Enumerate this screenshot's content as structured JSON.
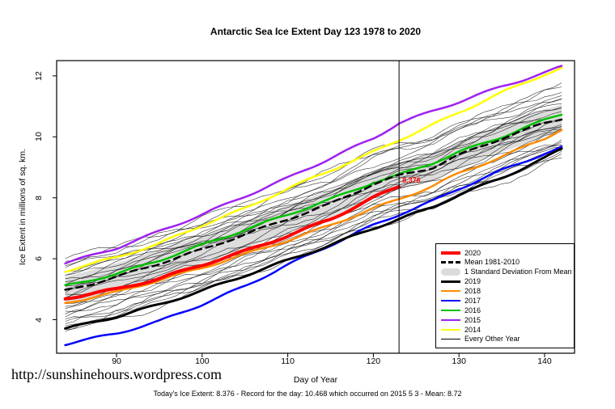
{
  "footer": {
    "url_text": "http://sunshinehours.wordpress.com",
    "caption": "Today's Ice Extent: 8.376  - Record for the day: 10.468 which occurred on 2015 5 3  - Mean: 8.72"
  },
  "chart_data": {
    "type": "line",
    "title": "Antarctic Sea Ice Extent Day 123 1978 to 2020",
    "xlabel": "Day of Year",
    "ylabel": "Ice Extent in millions of sq. km.",
    "xlim": [
      83,
      143.5
    ],
    "ylim": [
      2.9,
      12.5
    ],
    "xticks": [
      90,
      100,
      110,
      120,
      130,
      140
    ],
    "yticks": [
      4,
      6,
      8,
      10,
      12
    ],
    "grid": false,
    "vline_x": 123,
    "annotation": {
      "x": 123,
      "y": 8.376,
      "text": "8.376",
      "color": "#FF0000"
    },
    "std_band": {
      "label": "1 Standard Deviation From Mean",
      "half_width": 0.45,
      "color": "#DCDCDC"
    },
    "every_other_year": {
      "label": "Every Other Year",
      "count": 28,
      "offset_range": [
        -1.35,
        1.0
      ],
      "color": "#000000"
    },
    "series": [
      {
        "name": "2014",
        "color": "#FFFF00",
        "width": 2.5,
        "dash": false,
        "x": [
          84,
          90,
          95,
          100,
          105,
          110,
          115,
          120,
          123,
          127,
          130,
          135,
          140,
          142
        ],
        "y": [
          5.6,
          6.05,
          6.5,
          7.1,
          7.65,
          8.3,
          8.9,
          9.5,
          9.9,
          10.4,
          10.8,
          11.45,
          12.05,
          12.25
        ]
      },
      {
        "name": "2015",
        "color": "#A020F0",
        "width": 2.5,
        "dash": false,
        "x": [
          84,
          90,
          95,
          100,
          105,
          110,
          115,
          120,
          123,
          127,
          130,
          135,
          140,
          142
        ],
        "y": [
          5.85,
          6.35,
          6.9,
          7.45,
          8.05,
          8.65,
          9.3,
          9.95,
          10.45,
          10.85,
          11.15,
          11.65,
          12.1,
          12.3
        ]
      },
      {
        "name": "2016",
        "color": "#00C000",
        "width": 2.5,
        "dash": false,
        "x": [
          84,
          90,
          95,
          100,
          105,
          110,
          115,
          120,
          123,
          127,
          130,
          135,
          140,
          142
        ],
        "y": [
          5.1,
          5.5,
          5.95,
          6.45,
          6.95,
          7.45,
          7.95,
          8.5,
          8.75,
          9.15,
          9.5,
          10.0,
          10.55,
          10.75
        ]
      },
      {
        "name": "2018",
        "color": "#FF8C00",
        "width": 2.5,
        "dash": false,
        "x": [
          84,
          90,
          95,
          100,
          105,
          110,
          115,
          120,
          123,
          127,
          130,
          135,
          140,
          142
        ],
        "y": [
          4.55,
          4.9,
          5.3,
          5.7,
          6.15,
          6.6,
          7.1,
          7.65,
          7.95,
          8.4,
          8.8,
          9.35,
          9.95,
          10.25
        ]
      },
      {
        "name": "2017",
        "color": "#0000FF",
        "width": 2.5,
        "dash": false,
        "x": [
          84,
          90,
          95,
          100,
          105,
          110,
          115,
          120,
          123,
          127,
          130,
          135,
          140,
          142
        ],
        "y": [
          3.2,
          3.55,
          3.95,
          4.5,
          5.1,
          5.8,
          6.45,
          7.1,
          7.45,
          7.9,
          8.3,
          8.9,
          9.45,
          9.65
        ]
      },
      {
        "name": "2019",
        "color": "#000000",
        "width": 3,
        "dash": false,
        "x": [
          84,
          90,
          95,
          100,
          105,
          110,
          115,
          120,
          123,
          127,
          130,
          135,
          140,
          142
        ],
        "y": [
          3.7,
          4.1,
          4.5,
          4.95,
          5.45,
          5.95,
          6.45,
          7.0,
          7.3,
          7.7,
          8.1,
          8.65,
          9.3,
          9.6
        ]
      },
      {
        "name": "Mean 1981-2010",
        "color": "#000000",
        "width": 2.5,
        "dash": true,
        "x": [
          84,
          90,
          95,
          100,
          105,
          110,
          115,
          120,
          123,
          127,
          130,
          135,
          140,
          142
        ],
        "y": [
          4.95,
          5.4,
          5.85,
          6.3,
          6.8,
          7.3,
          7.8,
          8.45,
          8.72,
          9.0,
          9.4,
          9.95,
          10.45,
          10.6
        ]
      },
      {
        "name": "2020",
        "color": "#FF0000",
        "width": 4,
        "dash": false,
        "x": [
          84,
          90,
          95,
          100,
          105,
          110,
          115,
          120,
          123
        ],
        "y": [
          4.7,
          5.0,
          5.35,
          5.8,
          6.25,
          6.75,
          7.3,
          8.0,
          8.376
        ]
      }
    ],
    "legend": {
      "position": "bottom-right",
      "items": [
        {
          "label": "2020",
          "color": "#FF0000",
          "type": "line",
          "width": 4
        },
        {
          "label": "Mean 1981-2010",
          "color": "#000000",
          "type": "dashed",
          "width": 3
        },
        {
          "label": "1 Standard Deviation From Mean",
          "color": "#DCDCDC",
          "type": "band",
          "width": 9
        },
        {
          "label": "2019",
          "color": "#000000",
          "type": "line",
          "width": 3
        },
        {
          "label": "2018",
          "color": "#FF8C00",
          "type": "line",
          "width": 2
        },
        {
          "label": "2017",
          "color": "#0000FF",
          "type": "line",
          "width": 2
        },
        {
          "label": "2016",
          "color": "#00C000",
          "type": "line",
          "width": 2
        },
        {
          "label": "2015",
          "color": "#A020F0",
          "type": "line",
          "width": 2
        },
        {
          "label": "2014",
          "color": "#FFFF00",
          "type": "line",
          "width": 2
        },
        {
          "label": "Every Other Year",
          "color": "#000000",
          "type": "line",
          "width": 1
        }
      ]
    }
  }
}
